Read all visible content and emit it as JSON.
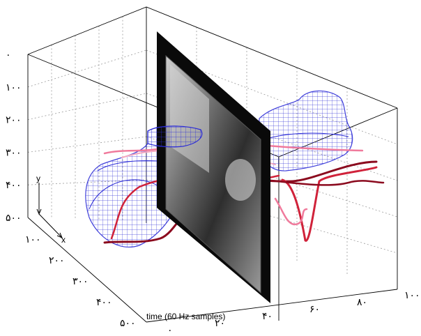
{
  "chart_data": {
    "type": "3d-trajectory",
    "xlabel": "time (60 Hz samples)",
    "ylabel": "y",
    "zlabel": "x",
    "time_ticks": [
      "۰",
      "۲۰",
      "۴۰",
      "۶۰",
      "۸۰",
      "۱۰۰"
    ],
    "x_ticks": [
      "۱۰۰",
      "۲۰۰",
      "۳۰۰",
      "۴۰۰",
      "۵۰۰"
    ],
    "y_ticks": [
      "۰",
      "۱۰۰",
      "۲۰۰",
      "۳۰۰",
      "۴۰۰",
      "۵۰۰"
    ],
    "time_range": [
      0,
      100
    ],
    "x_range": [
      0,
      500
    ],
    "y_range": [
      0,
      500
    ],
    "grid": true,
    "frame_time": 40,
    "colors": {
      "mesh_left": "#2b2bd6",
      "mesh_right": "#2b2bd6",
      "track_dark": "#8b0a1e",
      "track_red": "#d0223a",
      "track_pink": "#f07a9c",
      "frame_border": "#000000"
    }
  }
}
